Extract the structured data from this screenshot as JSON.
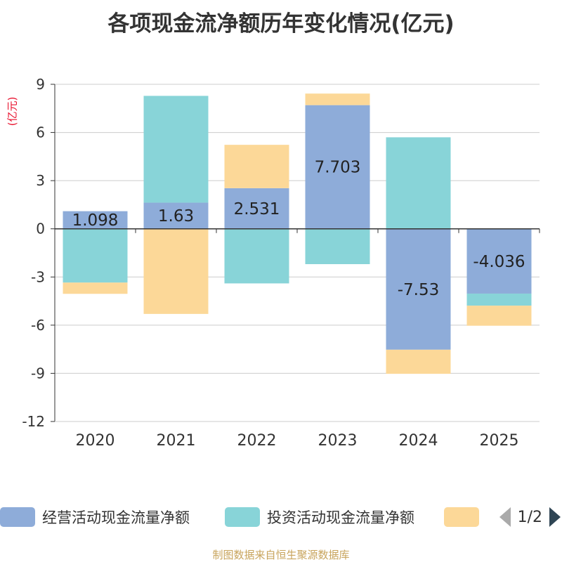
{
  "title": "各项现金流净额历年变化情况(亿元)",
  "unit_label": "(亿元)",
  "source": "制图数据来自恒生聚源数据库",
  "legend": {
    "items": [
      {
        "label": "经营活动现金流量净额",
        "color": "#8eacd9"
      },
      {
        "label": "投资活动现金流量净额",
        "color": "#88d4d8"
      },
      {
        "label": "",
        "color": "#fcd898"
      }
    ],
    "page": "1/2"
  },
  "chart_data": {
    "type": "bar",
    "stacked": true,
    "categories": [
      "2020",
      "2021",
      "2022",
      "2023",
      "2024",
      "2025"
    ],
    "series": [
      {
        "name": "经营活动现金流量净额",
        "color": "#8eacd9",
        "values": [
          1.098,
          1.63,
          2.531,
          7.703,
          -7.53,
          -4.036
        ],
        "labels": [
          "1.098",
          "1.63",
          "2.531",
          "7.703",
          "-7.53",
          "-4.036"
        ]
      },
      {
        "name": "投资活动现金流量净额",
        "color": "#88d4d8",
        "values": [
          -3.35,
          6.65,
          -3.4,
          -2.2,
          5.7,
          -0.75
        ]
      },
      {
        "name": "",
        "color": "#fcd898",
        "values": [
          -0.7,
          -5.3,
          2.7,
          0.72,
          -1.5,
          -1.25
        ]
      }
    ],
    "yticks": [
      9,
      6,
      3,
      0,
      -3,
      -6,
      -9,
      -12
    ],
    "ylim": [
      -12,
      9
    ],
    "grid": true
  }
}
